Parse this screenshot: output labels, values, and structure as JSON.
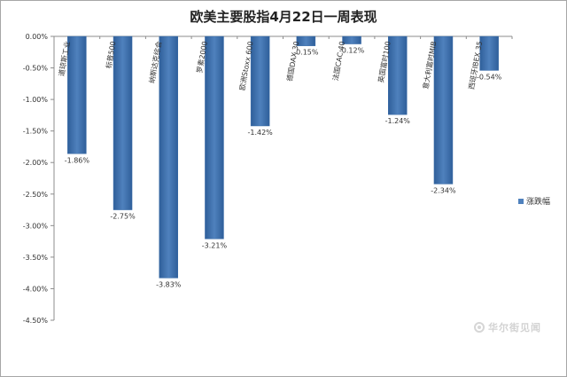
{
  "chart_data": {
    "type": "bar",
    "title": "欧美主要股指4月22日一周表现",
    "xlabel": "",
    "ylabel": "",
    "categories": [
      "道琼斯工业",
      "标普500",
      "纳斯达克综合",
      "罗素2000",
      "欧洲Stoxx 600",
      "德国DAX 30",
      "法国CAC 40",
      "英国富时100",
      "意大利富时MIB",
      "西班牙IBEX 35"
    ],
    "series": [
      {
        "name": "涨跌幅",
        "values": [
          -1.86,
          -2.75,
          -3.83,
          -3.21,
          -1.42,
          -0.15,
          -0.12,
          -1.24,
          -2.34,
          -0.54
        ]
      }
    ],
    "data_labels": [
      "-1.86%",
      "-2.75%",
      "-3.83%",
      "-3.21%",
      "-1.42%",
      "-0.15%",
      "-0.12%",
      "-1.24%",
      "-2.34%",
      "-0.54%"
    ],
    "y_ticks": [
      0,
      -0.5,
      -1,
      -1.5,
      -2,
      -2.5,
      -3,
      -3.5,
      -4,
      -4.5
    ],
    "y_tick_labels": [
      "0.00%",
      "-0.50%",
      "-1.00%",
      "-1.50%",
      "-2.00%",
      "-2.50%",
      "-3.00%",
      "-3.50%",
      "-4.00%",
      "-4.50%"
    ],
    "ylim": [
      -4.5,
      0
    ],
    "grid": false,
    "legend_position": "right",
    "colors": {
      "bar": "#4f81bd",
      "bar_dark": "#2f5f9a",
      "axis": "#8c8c8c",
      "text": "#333333"
    }
  },
  "watermark": {
    "text": "华尔街见闻",
    "icon": "wallstreetcn-logo-icon"
  }
}
